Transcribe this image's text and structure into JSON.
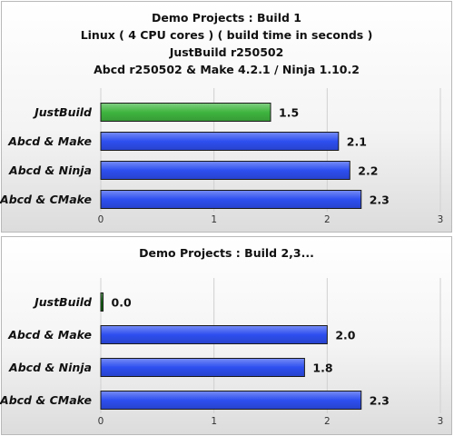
{
  "chart_data": [
    {
      "type": "bar",
      "orientation": "horizontal",
      "title_lines": [
        "Demo Projects : Build 1",
        "Linux ( 4 CPU cores ) ( build time in seconds )",
        "JustBuild r250502",
        "Abcd r250502  & Make 4.2.1 / Ninja 1.10.2"
      ],
      "categories": [
        "JustBuild",
        "Abcd & Make",
        "Abcd & Ninja",
        "Abcd & CMake"
      ],
      "values": [
        1.5,
        2.1,
        2.2,
        2.3
      ],
      "value_labels": [
        "1.5",
        "2.1",
        "2.2",
        "2.3"
      ],
      "bar_colors": [
        "#3fb53f",
        "#2e4ff0",
        "#2e4ff0",
        "#2e4ff0"
      ],
      "xlim": [
        0,
        3
      ],
      "xticks": [
        "0",
        "1",
        "2",
        "3"
      ],
      "grid": true
    },
    {
      "type": "bar",
      "orientation": "horizontal",
      "title_lines": [
        "Demo Projects : Build 2,3..."
      ],
      "categories": [
        "JustBuild",
        "Abcd & Make",
        "Abcd & Ninja",
        "Abcd & CMake"
      ],
      "values": [
        0.0,
        2.0,
        1.8,
        2.3
      ],
      "value_labels": [
        "0.0",
        "2.0",
        "1.8",
        "2.3"
      ],
      "bar_colors": [
        "#0f6e0f",
        "#2e4ff0",
        "#2e4ff0",
        "#2e4ff0"
      ],
      "xlim": [
        0,
        3
      ],
      "xticks": [
        "0",
        "1",
        "2",
        "3"
      ],
      "grid": true
    }
  ]
}
